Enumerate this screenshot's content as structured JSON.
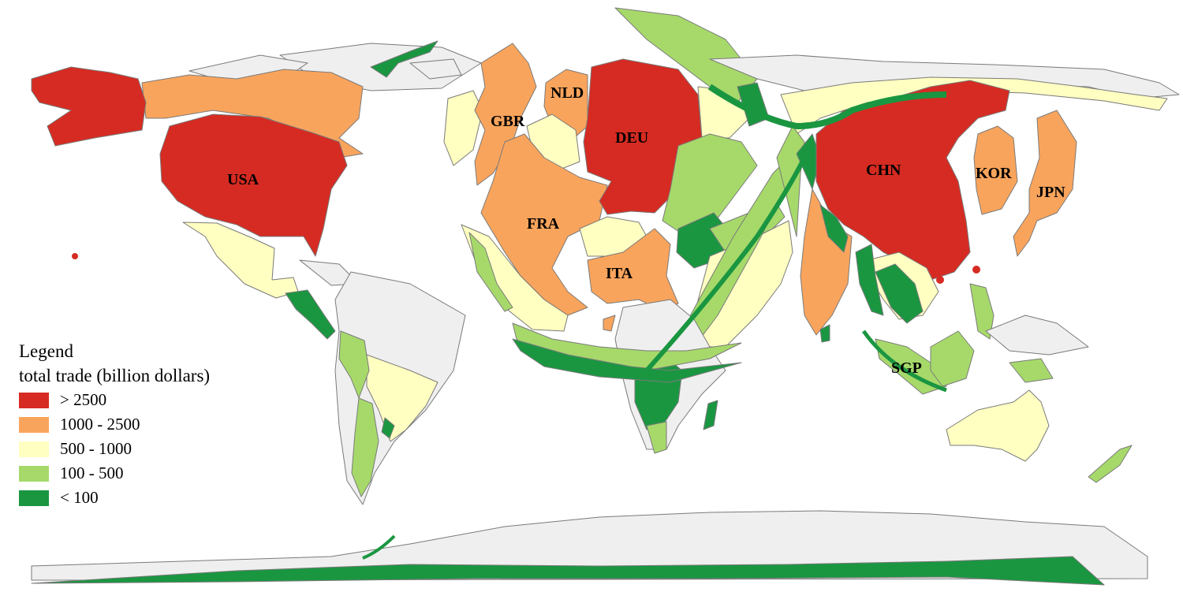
{
  "legend": {
    "title": "Legend",
    "subtitle": "total trade (billion dollars)",
    "classes": [
      {
        "label": "> 2500",
        "color": "#d62b22"
      },
      {
        "label": "1000 - 2500",
        "color": "#f9a45c"
      },
      {
        "label": "500 - 1000",
        "color": "#ffffc2"
      },
      {
        "label": "100 - 500",
        "color": "#a6d96a"
      },
      {
        "label": "< 100",
        "color": "#1a9641"
      }
    ]
  },
  "colors": {
    "background": "#ffffff",
    "no_data": "#efefef",
    "outline": "#7a7a7a"
  },
  "country_labels": [
    {
      "code": "USA",
      "trade_class": "> 2500"
    },
    {
      "code": "DEU",
      "trade_class": "> 2500"
    },
    {
      "code": "CHN",
      "trade_class": "> 2500"
    },
    {
      "code": "GBR",
      "trade_class": "1000 - 2500"
    },
    {
      "code": "NLD",
      "trade_class": "1000 - 2500"
    },
    {
      "code": "FRA",
      "trade_class": "1000 - 2500"
    },
    {
      "code": "ITA",
      "trade_class": "1000 - 2500"
    },
    {
      "code": "KOR",
      "trade_class": "1000 - 2500"
    },
    {
      "code": "JPN",
      "trade_class": "1000 - 2500"
    },
    {
      "code": "SGP",
      "trade_class": "100 - 500"
    }
  ]
}
